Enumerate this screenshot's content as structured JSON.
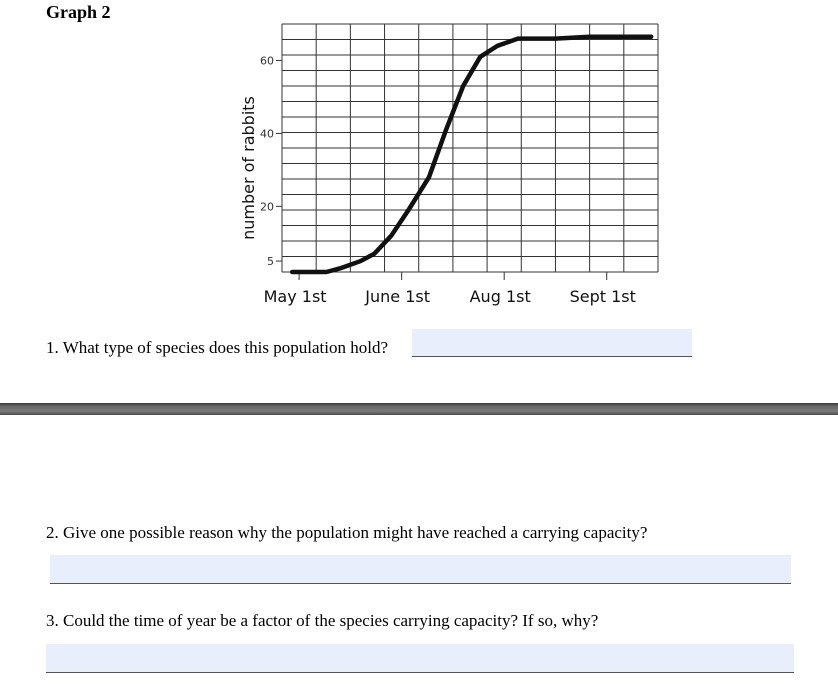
{
  "graph": {
    "title": "Graph 2"
  },
  "chart_data": {
    "type": "line",
    "ylabel": "number of rabbits",
    "xlabel": "",
    "y_ticks": [
      5,
      20,
      40,
      60
    ],
    "x_tick_labels": [
      "May 1st",
      "June 1st",
      "Aug 1st",
      "Sept 1st"
    ],
    "x_tick_positions": [
      0.5,
      3.5,
      6.5,
      9.5
    ],
    "xlim": [
      0,
      11
    ],
    "ylim": [
      2,
      70
    ],
    "grid": true,
    "series": [
      {
        "values": [
          {
            "x": 0.3,
            "y": 2
          },
          {
            "x": 1.3,
            "y": 2
          },
          {
            "x": 1.7,
            "y": 3
          },
          {
            "x": 2.3,
            "y": 5
          },
          {
            "x": 2.7,
            "y": 7
          },
          {
            "x": 3.2,
            "y": 12
          },
          {
            "x": 3.7,
            "y": 19
          },
          {
            "x": 4.3,
            "y": 28
          },
          {
            "x": 4.8,
            "y": 41
          },
          {
            "x": 5.3,
            "y": 53
          },
          {
            "x": 5.8,
            "y": 61
          },
          {
            "x": 6.3,
            "y": 64
          },
          {
            "x": 6.9,
            "y": 66
          },
          {
            "x": 8.0,
            "y": 66
          },
          {
            "x": 9.0,
            "y": 66.5
          },
          {
            "x": 10.8,
            "y": 66.5
          }
        ]
      }
    ]
  },
  "questions": [
    {
      "text": "1. What type of species does this population hold?",
      "answer": ""
    },
    {
      "text": "2. Give one possible reason why the population might have reached a carrying capacity?",
      "answer": ""
    },
    {
      "text": "3. Could the time of year be a factor of the species carrying capacity? If so, why?",
      "answer": ""
    }
  ]
}
